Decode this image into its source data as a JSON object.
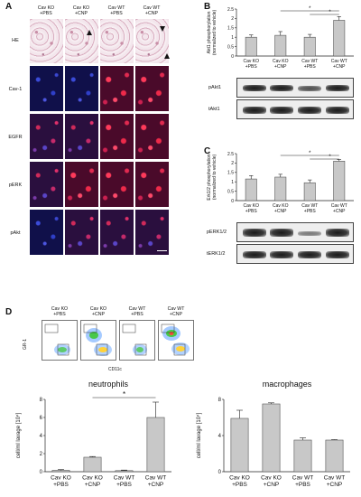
{
  "panel_a": {
    "label": "A",
    "columns": [
      "Cav KO\n+PBS",
      "Cav KO\n+CNP",
      "Cav WT\n+PBS",
      "Cav WT\n+CNP"
    ],
    "rows": [
      "HE",
      "Cav-1",
      "EGFR",
      "pERK",
      "pAkt"
    ]
  },
  "panel_b": {
    "label": "B",
    "blot_labels": [
      "pAkt1",
      "tAkt1"
    ]
  },
  "panel_c": {
    "label": "C",
    "blot_labels": [
      "pERK1/2",
      "tERK1/2"
    ]
  },
  "panel_d": {
    "label": "D",
    "flow_columns": [
      "Cav KO\n+PBS",
      "Cav KO\n+CNP",
      "Cav WT\n+PBS",
      "Cav WT\n+CNP"
    ],
    "flow_ylabel": "GR-1",
    "flow_xlabel": "CD11c"
  },
  "chart_data": [
    {
      "type": "bar",
      "panel": "B",
      "categories": [
        "Cav KO\n+PBS",
        "Cav KO\n+CNP",
        "Cav WT\n+PBS",
        "Cav WT\n+CNP"
      ],
      "values": [
        1.0,
        1.1,
        1.0,
        1.9
      ],
      "errors": [
        0.12,
        0.2,
        0.15,
        0.2
      ],
      "title": "",
      "xlabel": "",
      "ylabel": "Akt1 phosphorylation\n(normalized to vehicle)",
      "ylim": [
        0,
        2.5
      ],
      "yticks": [
        "0",
        "0.5",
        "1",
        "1.5",
        "2",
        "2.5"
      ],
      "significance": [
        "*",
        "*"
      ],
      "bar_color": "#c8c8c8"
    },
    {
      "type": "bar",
      "panel": "C",
      "categories": [
        "Cav KO\n+PBS",
        "Cav KO\n+CNP",
        "Cav WT\n+PBS",
        "Cav WT\n+CNP"
      ],
      "values": [
        1.15,
        1.25,
        0.95,
        2.1
      ],
      "errors": [
        0.18,
        0.15,
        0.15,
        0.08
      ],
      "title": "",
      "xlabel": "",
      "ylabel": "Erk1/2 phosphorylation\n(normalized to vehicle)",
      "ylim": [
        0,
        2.5
      ],
      "yticks": [
        "0",
        "0.5",
        "1",
        "1.5",
        "2",
        "2.5"
      ],
      "significance": [
        "*",
        "*"
      ],
      "bar_color": "#c8c8c8"
    },
    {
      "type": "bar",
      "panel": "D",
      "categories": [
        "Cav KO\n+PBS",
        "Cav KO\n+CNP",
        "Cav WT\n+PBS",
        "Cav WT\n+CNP"
      ],
      "values": [
        0.15,
        1.6,
        0.12,
        6.0
      ],
      "errors": [
        0.08,
        0.08,
        0.06,
        1.7
      ],
      "title": "neutrophils",
      "xlabel": "",
      "ylabel": "cell/ml lavage [10⁴]",
      "ylim": [
        0,
        8
      ],
      "yticks": [
        "0",
        "2",
        "4",
        "6",
        "8"
      ],
      "significance": [
        "*"
      ],
      "bar_color": "#c8c8c8"
    },
    {
      "type": "bar",
      "panel": "D",
      "categories": [
        "Cav KO\n+PBS",
        "Cav KO\n+CNP",
        "Cav WT\n+PBS",
        "Cav WT\n+CNP"
      ],
      "values": [
        5.9,
        7.5,
        3.5,
        3.5
      ],
      "errors": [
        0.9,
        0.12,
        0.25,
        0.05
      ],
      "title": "macrophages",
      "xlabel": "",
      "ylabel": "cell/ml lavage [10⁴]",
      "ylim": [
        0,
        8
      ],
      "yticks": [
        "0",
        "4",
        "8"
      ],
      "significance": [],
      "bar_color": "#c8c8c8"
    }
  ]
}
